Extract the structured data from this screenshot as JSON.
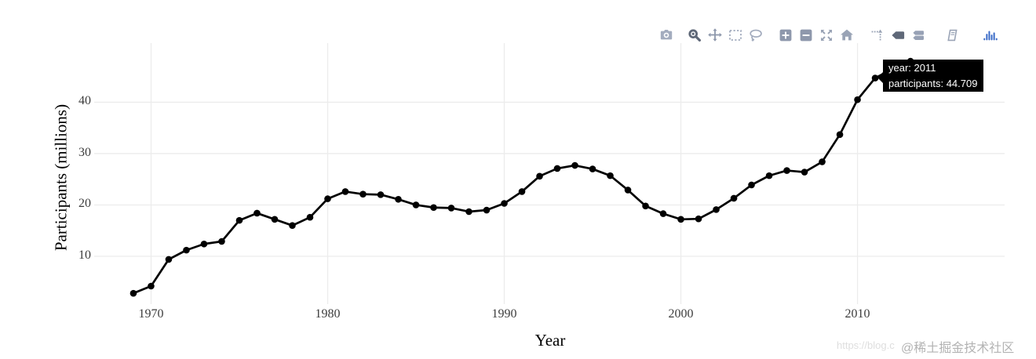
{
  "chart_data": {
    "type": "line",
    "title": "",
    "xlabel": "Year",
    "ylabel": "Participants (millions)",
    "x": [
      1969,
      1970,
      1971,
      1972,
      1973,
      1974,
      1975,
      1976,
      1977,
      1978,
      1979,
      1980,
      1981,
      1982,
      1983,
      1984,
      1985,
      1986,
      1987,
      1988,
      1989,
      1990,
      1991,
      1992,
      1993,
      1994,
      1995,
      1996,
      1997,
      1998,
      1999,
      2000,
      2001,
      2002,
      2003,
      2004,
      2005,
      2006,
      2007,
      2008,
      2009,
      2010,
      2011,
      2012,
      2013
    ],
    "y": [
      2.8,
      4.2,
      9.4,
      11.2,
      12.4,
      12.9,
      17.0,
      18.4,
      17.2,
      16.0,
      17.6,
      21.2,
      22.6,
      22.1,
      22.0,
      21.1,
      20.0,
      19.5,
      19.4,
      18.7,
      19.0,
      20.3,
      22.6,
      25.6,
      27.1,
      27.7,
      27.0,
      25.7,
      22.9,
      19.8,
      18.3,
      17.2,
      17.3,
      19.1,
      21.3,
      23.9,
      25.7,
      26.7,
      26.4,
      28.4,
      33.7,
      40.5,
      44.709,
      46.5,
      48.0
    ],
    "x_ticks": [
      1970,
      1980,
      1990,
      2000,
      2010
    ],
    "y_ticks": [
      10,
      20,
      30,
      40
    ],
    "xlim": [
      1966.78,
      2018.33
    ],
    "ylim": [
      0.69,
      51.51
    ],
    "grid": true,
    "legend": "none",
    "line_color": "#000000",
    "marker": "circle",
    "marker_color": "#000000",
    "grid_color": "#ececec",
    "hovered_point": {
      "year": 2011,
      "participants": 44.709
    }
  },
  "tooltip": {
    "line1": "year: 2011",
    "line2": "participants: 44.709",
    "bg": "#000000",
    "text_color": "#ffffff"
  },
  "toolbar": {
    "icon_color": "#a3acbe",
    "mid_icon_color": "#8e98ac",
    "active_icon_color": "#5f6878",
    "logo_color": "#3a6bc7",
    "icons": [
      {
        "name": "camera-icon"
      },
      {
        "name": "zoom-icon",
        "active": true
      },
      {
        "name": "pan-icon"
      },
      {
        "name": "box-select-icon"
      },
      {
        "name": "lasso-select-icon"
      },
      {
        "name": "zoom-in-icon"
      },
      {
        "name": "zoom-out-icon"
      },
      {
        "name": "autoscale-icon"
      },
      {
        "name": "reset-axes-icon"
      },
      {
        "name": "spikeline-icon"
      },
      {
        "name": "hover-closest-icon",
        "active": true
      },
      {
        "name": "hover-compare-icon"
      },
      {
        "name": "notebook-icon"
      },
      {
        "name": "plotly-logo-icon"
      }
    ]
  },
  "watermark": {
    "url_fragment": "https://blog.c",
    "community": "@稀土掘金技术社区"
  }
}
